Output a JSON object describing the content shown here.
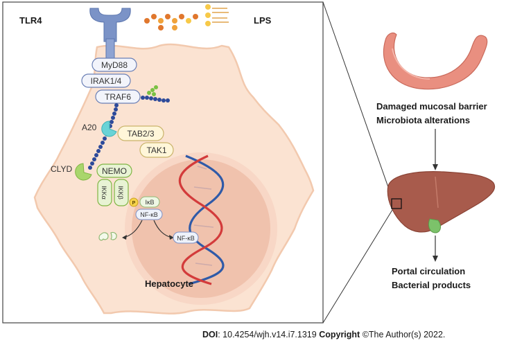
{
  "labels": {
    "tlr4": "TLR4",
    "lps": "LPS",
    "myd88": "MyD88",
    "irak": "IRAK1/4",
    "traf6": "TRAF6",
    "a20": "A20",
    "tab23": "TAB2/3",
    "tak1": "TAK1",
    "clyd": "CLYD",
    "nemo": "NEMO",
    "ikka": "IKKα",
    "ikkb": "IKKβ",
    "p": "P",
    "ikb": "IκB",
    "nfkb": "NF-κB",
    "nfkb_nuc": "NF-κB",
    "hepatocyte": "Hepatocyte",
    "damaged": "Damaged mucosal barrier",
    "microbiota": "Microbiota alterations",
    "portal": "Portal circulation",
    "bacterial": "Bacterial products"
  },
  "footer": {
    "doi_label": "DOI",
    "doi_value": ": 10.4254/wjh.v14.i7.1319 ",
    "copyright_label": "Copyright",
    "copyright_value": " ©The Author(s) 2022."
  },
  "colors": {
    "cell_fill": "#fbe3d2",
    "cell_stroke": "#f2c9ae",
    "nucleus_fill": "#f2c8b4",
    "receptor": "#7b93c7",
    "chain": "#2d4a9a",
    "a20": "#6ad3d6",
    "clyd": "#a9d66c",
    "nemo_fill": "#e8f3d4",
    "tab_fill": "#fff6d9",
    "dna_red": "#d33b3b",
    "dna_blue": "#2f5aa8",
    "intestine": "#e98f80",
    "liver": "#a85b4c",
    "gallbladder": "#7cc26a"
  }
}
